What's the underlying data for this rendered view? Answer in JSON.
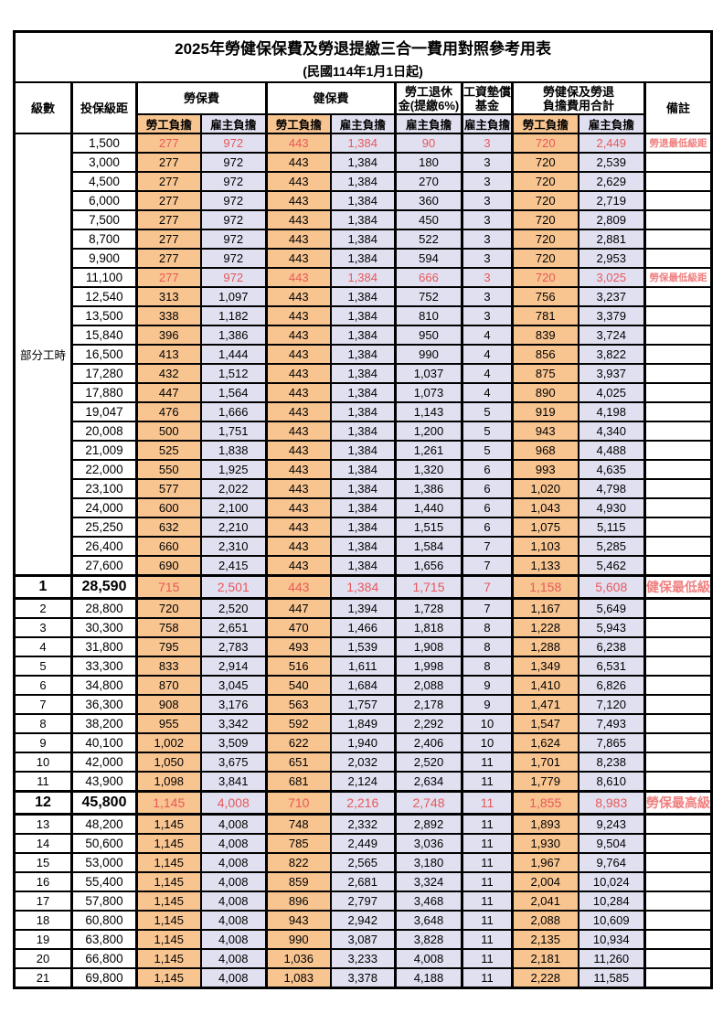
{
  "title": "2025年勞健保保費及勞退提繳三合一費用對照參考用表",
  "subtitle": "(民國114年1月1日起)",
  "header": {
    "level": "級數",
    "bracket": "投保級距",
    "labor_insurance": "勞保費",
    "health_insurance": "健保費",
    "pension_line1": "勞工退休",
    "pension_line2": "金(提繳6%)",
    "wage_fund_line1": "工資墊償",
    "wage_fund_line2": "基金",
    "total_line1": "勞健保及勞退",
    "total_line2": "負擔費用合計",
    "remark": "備註",
    "employee_label": "勞工負擔",
    "employer_label": "雇主負擔"
  },
  "part_time": {
    "label": "部分工時",
    "rowspan": 23
  },
  "colors": {
    "employee_bg": "#F8C591",
    "employer_bg": "#E1E0F1",
    "highlight_value_text": "#E8585A",
    "remark_text": "#F08080",
    "border": "#000000"
  },
  "rows": [
    {
      "level": "",
      "bracket": "1,500",
      "values": [
        "277",
        "972",
        "443",
        "1,384",
        "90",
        "3",
        "720",
        "2,449"
      ],
      "remark": "勞退最低級距",
      "red": true
    },
    {
      "level": "",
      "bracket": "3,000",
      "values": [
        "277",
        "972",
        "443",
        "1,384",
        "180",
        "3",
        "720",
        "2,539"
      ],
      "remark": ""
    },
    {
      "level": "",
      "bracket": "4,500",
      "values": [
        "277",
        "972",
        "443",
        "1,384",
        "270",
        "3",
        "720",
        "2,629"
      ],
      "remark": ""
    },
    {
      "level": "",
      "bracket": "6,000",
      "values": [
        "277",
        "972",
        "443",
        "1,384",
        "360",
        "3",
        "720",
        "2,719"
      ],
      "remark": ""
    },
    {
      "level": "",
      "bracket": "7,500",
      "values": [
        "277",
        "972",
        "443",
        "1,384",
        "450",
        "3",
        "720",
        "2,809"
      ],
      "remark": ""
    },
    {
      "level": "",
      "bracket": "8,700",
      "values": [
        "277",
        "972",
        "443",
        "1,384",
        "522",
        "3",
        "720",
        "2,881"
      ],
      "remark": ""
    },
    {
      "level": "",
      "bracket": "9,900",
      "values": [
        "277",
        "972",
        "443",
        "1,384",
        "594",
        "3",
        "720",
        "2,953"
      ],
      "remark": ""
    },
    {
      "level": "",
      "bracket": "11,100",
      "values": [
        "277",
        "972",
        "443",
        "1,384",
        "666",
        "3",
        "720",
        "3,025"
      ],
      "remark": "勞保最低級距",
      "red": true
    },
    {
      "level": "",
      "bracket": "12,540",
      "values": [
        "313",
        "1,097",
        "443",
        "1,384",
        "752",
        "3",
        "756",
        "3,237"
      ],
      "remark": ""
    },
    {
      "level": "",
      "bracket": "13,500",
      "values": [
        "338",
        "1,182",
        "443",
        "1,384",
        "810",
        "3",
        "781",
        "3,379"
      ],
      "remark": ""
    },
    {
      "level": "",
      "bracket": "15,840",
      "values": [
        "396",
        "1,386",
        "443",
        "1,384",
        "950",
        "4",
        "839",
        "3,724"
      ],
      "remark": ""
    },
    {
      "level": "",
      "bracket": "16,500",
      "values": [
        "413",
        "1,444",
        "443",
        "1,384",
        "990",
        "4",
        "856",
        "3,822"
      ],
      "remark": ""
    },
    {
      "level": "",
      "bracket": "17,280",
      "values": [
        "432",
        "1,512",
        "443",
        "1,384",
        "1,037",
        "4",
        "875",
        "3,937"
      ],
      "remark": ""
    },
    {
      "level": "",
      "bracket": "17,880",
      "values": [
        "447",
        "1,564",
        "443",
        "1,384",
        "1,073",
        "4",
        "890",
        "4,025"
      ],
      "remark": ""
    },
    {
      "level": "",
      "bracket": "19,047",
      "values": [
        "476",
        "1,666",
        "443",
        "1,384",
        "1,143",
        "5",
        "919",
        "4,198"
      ],
      "remark": ""
    },
    {
      "level": "",
      "bracket": "20,008",
      "values": [
        "500",
        "1,751",
        "443",
        "1,384",
        "1,200",
        "5",
        "943",
        "4,340"
      ],
      "remark": ""
    },
    {
      "level": "",
      "bracket": "21,009",
      "values": [
        "525",
        "1,838",
        "443",
        "1,384",
        "1,261",
        "5",
        "968",
        "4,488"
      ],
      "remark": ""
    },
    {
      "level": "",
      "bracket": "22,000",
      "values": [
        "550",
        "1,925",
        "443",
        "1,384",
        "1,320",
        "6",
        "993",
        "4,635"
      ],
      "remark": ""
    },
    {
      "level": "",
      "bracket": "23,100",
      "values": [
        "577",
        "2,022",
        "443",
        "1,384",
        "1,386",
        "6",
        "1,020",
        "4,798"
      ],
      "remark": ""
    },
    {
      "level": "",
      "bracket": "24,000",
      "values": [
        "600",
        "2,100",
        "443",
        "1,384",
        "1,440",
        "6",
        "1,043",
        "4,930"
      ],
      "remark": ""
    },
    {
      "level": "",
      "bracket": "25,250",
      "values": [
        "632",
        "2,210",
        "443",
        "1,384",
        "1,515",
        "6",
        "1,075",
        "5,115"
      ],
      "remark": ""
    },
    {
      "level": "",
      "bracket": "26,400",
      "values": [
        "660",
        "2,310",
        "443",
        "1,384",
        "1,584",
        "7",
        "1,103",
        "5,285"
      ],
      "remark": ""
    },
    {
      "level": "",
      "bracket": "27,600",
      "values": [
        "690",
        "2,415",
        "443",
        "1,384",
        "1,656",
        "7",
        "1,133",
        "5,462"
      ],
      "remark": ""
    },
    {
      "level": "1",
      "bracket": "28,590",
      "values": [
        "715",
        "2,501",
        "443",
        "1,384",
        "1,715",
        "7",
        "1,158",
        "5,608"
      ],
      "remark": "健保最低級距",
      "red": true,
      "big": true
    },
    {
      "level": "2",
      "bracket": "28,800",
      "values": [
        "720",
        "2,520",
        "447",
        "1,394",
        "1,728",
        "7",
        "1,167",
        "5,649"
      ],
      "remark": ""
    },
    {
      "level": "3",
      "bracket": "30,300",
      "values": [
        "758",
        "2,651",
        "470",
        "1,466",
        "1,818",
        "8",
        "1,228",
        "5,943"
      ],
      "remark": ""
    },
    {
      "level": "4",
      "bracket": "31,800",
      "values": [
        "795",
        "2,783",
        "493",
        "1,539",
        "1,908",
        "8",
        "1,288",
        "6,238"
      ],
      "remark": ""
    },
    {
      "level": "5",
      "bracket": "33,300",
      "values": [
        "833",
        "2,914",
        "516",
        "1,611",
        "1,998",
        "8",
        "1,349",
        "6,531"
      ],
      "remark": ""
    },
    {
      "level": "6",
      "bracket": "34,800",
      "values": [
        "870",
        "3,045",
        "540",
        "1,684",
        "2,088",
        "9",
        "1,410",
        "6,826"
      ],
      "remark": ""
    },
    {
      "level": "7",
      "bracket": "36,300",
      "values": [
        "908",
        "3,176",
        "563",
        "1,757",
        "2,178",
        "9",
        "1,471",
        "7,120"
      ],
      "remark": ""
    },
    {
      "level": "8",
      "bracket": "38,200",
      "values": [
        "955",
        "3,342",
        "592",
        "1,849",
        "2,292",
        "10",
        "1,547",
        "7,493"
      ],
      "remark": ""
    },
    {
      "level": "9",
      "bracket": "40,100",
      "values": [
        "1,002",
        "3,509",
        "622",
        "1,940",
        "2,406",
        "10",
        "1,624",
        "7,865"
      ],
      "remark": ""
    },
    {
      "level": "10",
      "bracket": "42,000",
      "values": [
        "1,050",
        "3,675",
        "651",
        "2,032",
        "2,520",
        "11",
        "1,701",
        "8,238"
      ],
      "remark": ""
    },
    {
      "level": "11",
      "bracket": "43,900",
      "values": [
        "1,098",
        "3,841",
        "681",
        "2,124",
        "2,634",
        "11",
        "1,779",
        "8,610"
      ],
      "remark": ""
    },
    {
      "level": "12",
      "bracket": "45,800",
      "values": [
        "1,145",
        "4,008",
        "710",
        "2,216",
        "2,748",
        "11",
        "1,855",
        "8,983"
      ],
      "remark": "勞保最高級距",
      "red": true,
      "big": true
    },
    {
      "level": "13",
      "bracket": "48,200",
      "values": [
        "1,145",
        "4,008",
        "748",
        "2,332",
        "2,892",
        "11",
        "1,893",
        "9,243"
      ],
      "remark": ""
    },
    {
      "level": "14",
      "bracket": "50,600",
      "values": [
        "1,145",
        "4,008",
        "785",
        "2,449",
        "3,036",
        "11",
        "1,930",
        "9,504"
      ],
      "remark": ""
    },
    {
      "level": "15",
      "bracket": "53,000",
      "values": [
        "1,145",
        "4,008",
        "822",
        "2,565",
        "3,180",
        "11",
        "1,967",
        "9,764"
      ],
      "remark": ""
    },
    {
      "level": "16",
      "bracket": "55,400",
      "values": [
        "1,145",
        "4,008",
        "859",
        "2,681",
        "3,324",
        "11",
        "2,004",
        "10,024"
      ],
      "remark": ""
    },
    {
      "level": "17",
      "bracket": "57,800",
      "values": [
        "1,145",
        "4,008",
        "896",
        "2,797",
        "3,468",
        "11",
        "2,041",
        "10,284"
      ],
      "remark": ""
    },
    {
      "level": "18",
      "bracket": "60,800",
      "values": [
        "1,145",
        "4,008",
        "943",
        "2,942",
        "3,648",
        "11",
        "2,088",
        "10,609"
      ],
      "remark": ""
    },
    {
      "level": "19",
      "bracket": "63,800",
      "values": [
        "1,145",
        "4,008",
        "990",
        "3,087",
        "3,828",
        "11",
        "2,135",
        "10,934"
      ],
      "remark": ""
    },
    {
      "level": "20",
      "bracket": "66,800",
      "values": [
        "1,145",
        "4,008",
        "1,036",
        "3,233",
        "4,008",
        "11",
        "2,181",
        "11,260"
      ],
      "remark": ""
    },
    {
      "level": "21",
      "bracket": "69,800",
      "values": [
        "1,145",
        "4,008",
        "1,083",
        "3,378",
        "4,188",
        "11",
        "2,228",
        "11,585"
      ],
      "remark": ""
    }
  ]
}
